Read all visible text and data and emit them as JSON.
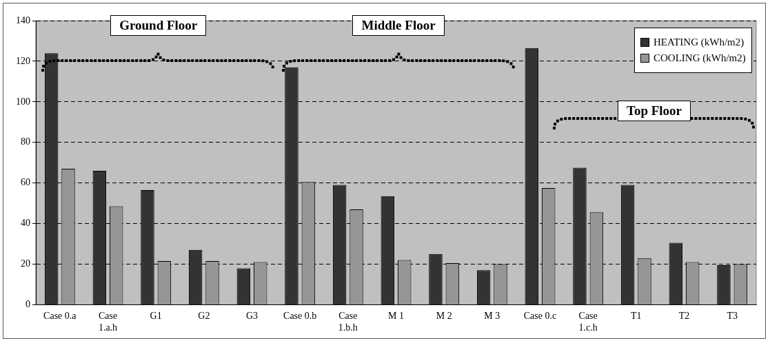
{
  "chart_data": {
    "type": "bar",
    "categories": [
      "Case 0.a",
      "Case 1.a.h",
      "G1",
      "G2",
      "G3",
      "Case 0.b",
      "Case 1.b.h",
      "M 1",
      "M 2",
      "M 3",
      "Case 0.c",
      "Case 1.c.h",
      "T1",
      "T2",
      "T3"
    ],
    "series": [
      {
        "name": "HEATING (kWh/m2)",
        "color": "#333333",
        "values": [
          124,
          66,
          56.5,
          27,
          18,
          117,
          59,
          53.5,
          25,
          17,
          126.5,
          67.5,
          59,
          30.5,
          19.5
        ]
      },
      {
        "name": "COOLING (kWh/m2)",
        "color": "#969696",
        "values": [
          67,
          48.5,
          21.5,
          21.5,
          21,
          60.5,
          47,
          22,
          20.5,
          20,
          57.5,
          45.5,
          23,
          21,
          20
        ]
      }
    ],
    "ylim": [
      0,
      140
    ],
    "yticks": [
      0,
      20,
      40,
      60,
      80,
      100,
      120,
      140
    ],
    "grid": "y",
    "legend": "top right",
    "annotations": [
      "Ground Floor",
      "Middle Floor",
      "Top Floor"
    ]
  }
}
